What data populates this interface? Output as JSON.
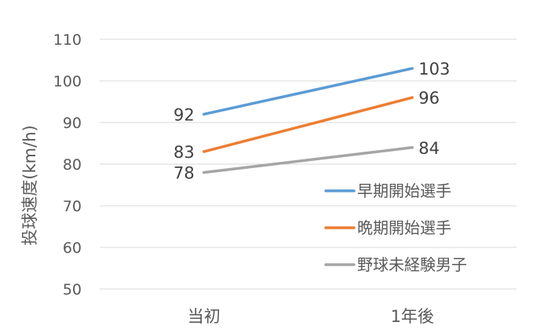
{
  "chart_data": {
    "type": "line",
    "title": "",
    "xlabel": "",
    "ylabel": "投球速度(km/h)",
    "categories": [
      "当初",
      "1年後"
    ],
    "ylim": [
      50,
      110
    ],
    "yticks": [
      50,
      60,
      70,
      80,
      90,
      100,
      110
    ],
    "grid": true,
    "legend_position": "lower-right",
    "series": [
      {
        "name": "早期開始選手",
        "values": [
          92,
          103
        ],
        "color": "#5B9BD5"
      },
      {
        "name": "晩期開始選手",
        "values": [
          83,
          96
        ],
        "color": "#ED7D31"
      },
      {
        "name": "野球未経験男子",
        "values": [
          78,
          84
        ],
        "color": "#A5A5A5"
      }
    ],
    "data_labels": true
  }
}
